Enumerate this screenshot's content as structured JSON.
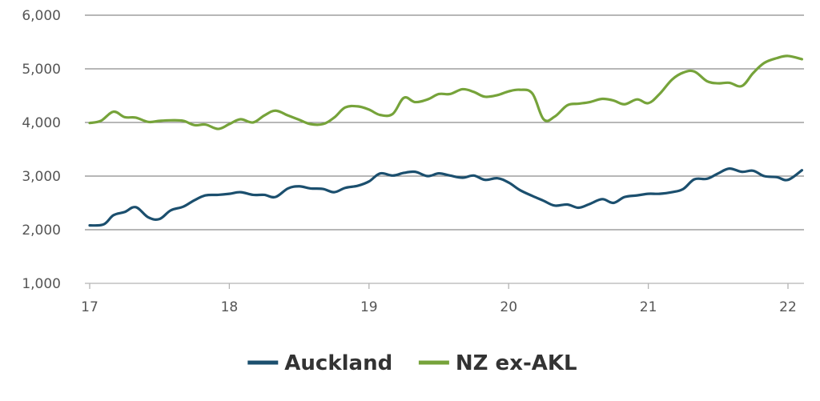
{
  "chart_data": {
    "type": "line",
    "title": "",
    "xlabel": "",
    "ylabel": "",
    "xlim": [
      17,
      22.1
    ],
    "ylim": [
      1000,
      6000
    ],
    "grid": true,
    "legend_placement": "bottom-center",
    "x_ticks": [
      {
        "value": 17,
        "label": "17"
      },
      {
        "value": 18,
        "label": "18"
      },
      {
        "value": 19,
        "label": "19"
      },
      {
        "value": 20,
        "label": "20"
      },
      {
        "value": 21,
        "label": "21"
      },
      {
        "value": 22,
        "label": "22"
      }
    ],
    "y_ticks": [
      {
        "value": 1000,
        "label": "1,000"
      },
      {
        "value": 2000,
        "label": "2,000"
      },
      {
        "value": 3000,
        "label": "3,000"
      },
      {
        "value": 4000,
        "label": "4,000"
      },
      {
        "value": 5000,
        "label": "5,000"
      },
      {
        "value": 6000,
        "label": "6,000"
      }
    ],
    "series": [
      {
        "name": "Auckland",
        "color": "#1b4f6e",
        "points": [
          [
            17.0,
            2080
          ],
          [
            17.1,
            2100
          ],
          [
            17.17,
            2270
          ],
          [
            17.25,
            2330
          ],
          [
            17.33,
            2420
          ],
          [
            17.42,
            2230
          ],
          [
            17.5,
            2200
          ],
          [
            17.58,
            2360
          ],
          [
            17.67,
            2430
          ],
          [
            17.75,
            2550
          ],
          [
            17.83,
            2640
          ],
          [
            17.92,
            2650
          ],
          [
            18.0,
            2670
          ],
          [
            18.08,
            2700
          ],
          [
            18.17,
            2650
          ],
          [
            18.25,
            2650
          ],
          [
            18.33,
            2610
          ],
          [
            18.42,
            2770
          ],
          [
            18.5,
            2810
          ],
          [
            18.58,
            2770
          ],
          [
            18.67,
            2760
          ],
          [
            18.75,
            2700
          ],
          [
            18.83,
            2780
          ],
          [
            18.92,
            2820
          ],
          [
            19.0,
            2900
          ],
          [
            19.08,
            3050
          ],
          [
            19.17,
            3010
          ],
          [
            19.25,
            3060
          ],
          [
            19.33,
            3080
          ],
          [
            19.42,
            3000
          ],
          [
            19.5,
            3050
          ],
          [
            19.58,
            3010
          ],
          [
            19.67,
            2970
          ],
          [
            19.75,
            3010
          ],
          [
            19.83,
            2930
          ],
          [
            19.92,
            2960
          ],
          [
            20.0,
            2880
          ],
          [
            20.08,
            2740
          ],
          [
            20.17,
            2630
          ],
          [
            20.25,
            2540
          ],
          [
            20.33,
            2450
          ],
          [
            20.42,
            2470
          ],
          [
            20.5,
            2410
          ],
          [
            20.58,
            2480
          ],
          [
            20.67,
            2570
          ],
          [
            20.75,
            2500
          ],
          [
            20.83,
            2610
          ],
          [
            20.92,
            2640
          ],
          [
            21.0,
            2670
          ],
          [
            21.08,
            2670
          ],
          [
            21.17,
            2700
          ],
          [
            21.25,
            2760
          ],
          [
            21.33,
            2940
          ],
          [
            21.42,
            2950
          ],
          [
            21.5,
            3050
          ],
          [
            21.58,
            3140
          ],
          [
            21.67,
            3080
          ],
          [
            21.75,
            3100
          ],
          [
            21.83,
            3000
          ],
          [
            21.92,
            2980
          ],
          [
            22.0,
            2930
          ],
          [
            22.1,
            3110
          ]
        ]
      },
      {
        "name": "NZ ex-AKL",
        "color": "#76a33a",
        "points": [
          [
            17.0,
            3990
          ],
          [
            17.08,
            4030
          ],
          [
            17.17,
            4200
          ],
          [
            17.25,
            4100
          ],
          [
            17.33,
            4090
          ],
          [
            17.42,
            4010
          ],
          [
            17.5,
            4030
          ],
          [
            17.58,
            4040
          ],
          [
            17.67,
            4030
          ],
          [
            17.75,
            3950
          ],
          [
            17.83,
            3960
          ],
          [
            17.92,
            3880
          ],
          [
            18.0,
            3970
          ],
          [
            18.08,
            4060
          ],
          [
            18.17,
            4000
          ],
          [
            18.25,
            4130
          ],
          [
            18.33,
            4220
          ],
          [
            18.42,
            4130
          ],
          [
            18.5,
            4050
          ],
          [
            18.58,
            3970
          ],
          [
            18.67,
            3970
          ],
          [
            18.75,
            4090
          ],
          [
            18.83,
            4280
          ],
          [
            18.92,
            4300
          ],
          [
            19.0,
            4240
          ],
          [
            19.08,
            4140
          ],
          [
            19.17,
            4160
          ],
          [
            19.25,
            4460
          ],
          [
            19.33,
            4380
          ],
          [
            19.42,
            4430
          ],
          [
            19.5,
            4530
          ],
          [
            19.58,
            4530
          ],
          [
            19.67,
            4620
          ],
          [
            19.75,
            4570
          ],
          [
            19.83,
            4480
          ],
          [
            19.92,
            4510
          ],
          [
            20.0,
            4580
          ],
          [
            20.08,
            4610
          ],
          [
            20.17,
            4540
          ],
          [
            20.25,
            4060
          ],
          [
            20.33,
            4110
          ],
          [
            20.42,
            4320
          ],
          [
            20.5,
            4350
          ],
          [
            20.58,
            4380
          ],
          [
            20.67,
            4440
          ],
          [
            20.75,
            4410
          ],
          [
            20.83,
            4340
          ],
          [
            20.92,
            4430
          ],
          [
            21.0,
            4360
          ],
          [
            21.08,
            4530
          ],
          [
            21.17,
            4800
          ],
          [
            21.25,
            4930
          ],
          [
            21.33,
            4950
          ],
          [
            21.42,
            4770
          ],
          [
            21.5,
            4730
          ],
          [
            21.58,
            4740
          ],
          [
            21.67,
            4680
          ],
          [
            21.75,
            4920
          ],
          [
            21.83,
            5110
          ],
          [
            21.92,
            5200
          ],
          [
            22.0,
            5240
          ],
          [
            22.1,
            5180
          ]
        ]
      }
    ]
  },
  "colors": {
    "gridline": "#8c8c8c",
    "axis": "#b4b4b4",
    "tick_text": "#555555",
    "legend_text": "#333333"
  }
}
